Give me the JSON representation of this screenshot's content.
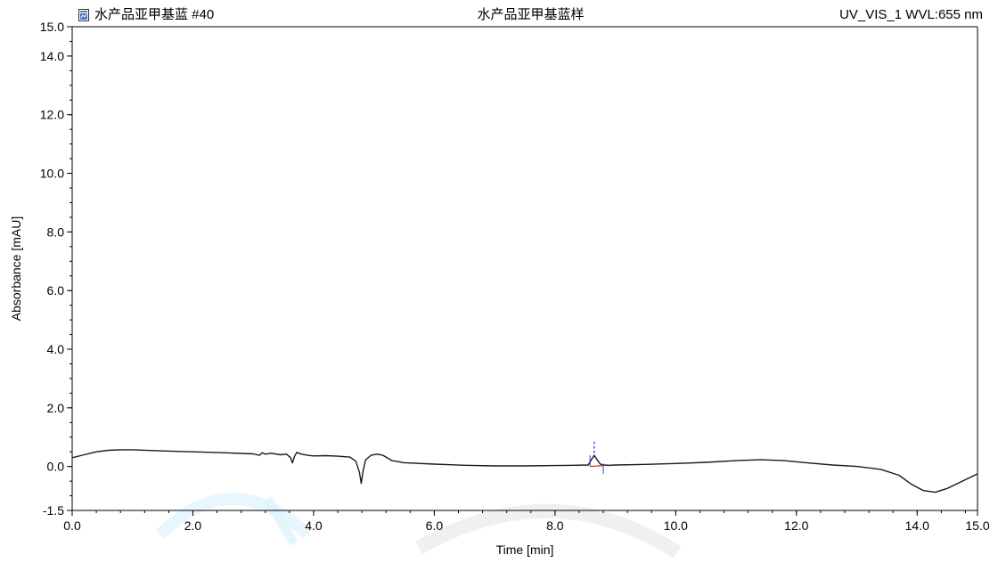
{
  "header": {
    "left_label": "水产品亚甲基蓝 #40",
    "center_label": "水产品亚甲基蓝样",
    "right_label": "UV_VIS_1 WVL:655 nm"
  },
  "colors": {
    "trace": "#1a1a1a",
    "axis": "#000000",
    "marker_blue": "#2a3fd6",
    "marker_red": "#d62a2a",
    "watermark": "#dff2fb"
  },
  "chart_data": {
    "type": "line",
    "xlabel": "Time [min]",
    "ylabel": "Absorbance [mAU]",
    "xlim": [
      0.0,
      15.0
    ],
    "ylim": [
      -1.5,
      15.0
    ],
    "x_ticks": [
      0.0,
      2.0,
      4.0,
      6.0,
      8.0,
      10.0,
      12.0,
      14.0,
      15.0
    ],
    "x_tick_labels": [
      "0.0",
      "2.0",
      "4.0",
      "6.0",
      "8.0",
      "10.0",
      "12.0",
      "14.0",
      "15.0"
    ],
    "y_ticks": [
      -1.5,
      0.0,
      2.0,
      4.0,
      6.0,
      8.0,
      10.0,
      12.0,
      14.0,
      15.0
    ],
    "y_tick_labels": [
      "-1.5",
      "0.0",
      "2.0",
      "4.0",
      "6.0",
      "8.0",
      "10.0",
      "12.0",
      "14.0",
      "15.0"
    ],
    "grid": false,
    "series": [
      {
        "x": [
          0.0,
          0.2,
          0.4,
          0.6,
          0.8,
          1.0,
          1.5,
          2.0,
          2.5,
          3.0,
          3.1,
          3.15,
          3.2,
          3.3,
          3.45,
          3.55,
          3.62,
          3.65,
          3.68,
          3.72,
          3.8,
          3.9,
          4.0,
          4.2,
          4.4,
          4.6,
          4.7,
          4.76,
          4.79,
          4.82,
          4.86,
          4.95,
          5.05,
          5.15,
          5.3,
          5.5,
          6.0,
          6.5,
          7.0,
          7.5,
          8.0,
          8.3,
          8.55,
          8.6,
          8.65,
          8.7,
          8.75,
          8.8,
          8.9,
          9.0,
          9.5,
          10.0,
          10.5,
          11.0,
          11.4,
          11.8,
          12.2,
          12.6,
          13.0,
          13.4,
          13.7,
          13.9,
          14.1,
          14.3,
          14.5,
          14.7,
          14.9,
          15.0
        ],
        "y": [
          0.3,
          0.4,
          0.5,
          0.55,
          0.57,
          0.57,
          0.53,
          0.5,
          0.47,
          0.43,
          0.38,
          0.47,
          0.42,
          0.45,
          0.4,
          0.42,
          0.3,
          0.12,
          0.33,
          0.48,
          0.42,
          0.38,
          0.36,
          0.37,
          0.35,
          0.32,
          0.18,
          -0.2,
          -0.58,
          -0.15,
          0.22,
          0.38,
          0.42,
          0.38,
          0.2,
          0.13,
          0.08,
          0.04,
          0.02,
          0.02,
          0.03,
          0.04,
          0.05,
          0.22,
          0.38,
          0.22,
          0.08,
          0.05,
          0.04,
          0.05,
          0.07,
          0.1,
          0.14,
          0.2,
          0.23,
          0.2,
          0.12,
          0.05,
          0.0,
          -0.1,
          -0.3,
          -0.6,
          -0.82,
          -0.88,
          -0.75,
          -0.55,
          -0.35,
          -0.25
        ]
      }
    ],
    "peak_marker": {
      "x": 8.65,
      "label": ""
    }
  }
}
